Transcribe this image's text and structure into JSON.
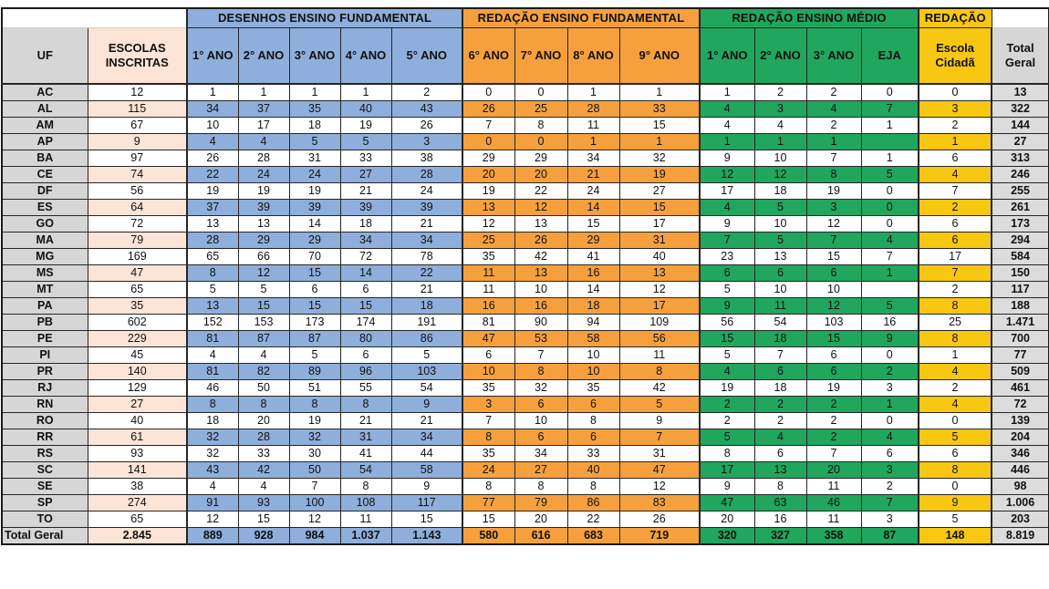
{
  "colors": {
    "blue": "#8eafdb",
    "orange": "#f6a03d",
    "green": "#21a65d",
    "yellow": "#f8c712",
    "grey": "#d6d6d6",
    "peach": "#fce4d6"
  },
  "table": {
    "groups": [
      {
        "label": "DESENHOS ENSINO FUNDAMENTAL",
        "seg": "blue",
        "span": 5
      },
      {
        "label": "REDAÇÃO ENSINO FUNDAMENTAL",
        "seg": "orange",
        "span": 4
      },
      {
        "label": "REDAÇÃO ENSINO MÉDIO",
        "seg": "green",
        "span": 4
      },
      {
        "label": "REDAÇÃO",
        "seg": "yellow",
        "span": 1
      }
    ],
    "columns": [
      {
        "label": "UF",
        "seg": "uf"
      },
      {
        "label": "ESCOLAS\nINSCRITAS",
        "seg": "esc"
      },
      {
        "label": "1° ANO",
        "seg": "blue"
      },
      {
        "label": "2° ANO",
        "seg": "blue"
      },
      {
        "label": "3° ANO",
        "seg": "blue"
      },
      {
        "label": "4° ANO",
        "seg": "blue"
      },
      {
        "label": "5° ANO",
        "seg": "blue"
      },
      {
        "label": "6° ANO",
        "seg": "orange"
      },
      {
        "label": "7° ANO",
        "seg": "orange"
      },
      {
        "label": "8° ANO",
        "seg": "orange"
      },
      {
        "label": "9° ANO",
        "seg": "orange"
      },
      {
        "label": "1° ANO",
        "seg": "green"
      },
      {
        "label": "2° ANO",
        "seg": "green"
      },
      {
        "label": "3° ANO",
        "seg": "green"
      },
      {
        "label": "EJA",
        "seg": "green"
      },
      {
        "label": "Escola\nCidadã",
        "seg": "yellow"
      },
      {
        "label": "Total\nGeral",
        "seg": "total"
      }
    ],
    "rows": [
      {
        "uf": "AC",
        "hl": false,
        "cells": [
          "12",
          "1",
          "1",
          "1",
          "1",
          "2",
          "0",
          "0",
          "1",
          "1",
          "1",
          "2",
          "2",
          "0",
          "0",
          "13"
        ]
      },
      {
        "uf": "AL",
        "hl": true,
        "cells": [
          "115",
          "34",
          "37",
          "35",
          "40",
          "43",
          "26",
          "25",
          "28",
          "33",
          "4",
          "3",
          "4",
          "7",
          "3",
          "322"
        ]
      },
      {
        "uf": "AM",
        "hl": false,
        "cells": [
          "67",
          "10",
          "17",
          "18",
          "19",
          "26",
          "7",
          "8",
          "11",
          "15",
          "4",
          "4",
          "2",
          "1",
          "2",
          "144"
        ]
      },
      {
        "uf": "AP",
        "hl": true,
        "cells": [
          "9",
          "4",
          "4",
          "5",
          "5",
          "3",
          "0",
          "0",
          "1",
          "1",
          "1",
          "1",
          "1",
          "",
          "1",
          "27"
        ]
      },
      {
        "uf": "BA",
        "hl": false,
        "cells": [
          "97",
          "26",
          "28",
          "31",
          "33",
          "38",
          "29",
          "29",
          "34",
          "32",
          "9",
          "10",
          "7",
          "1",
          "6",
          "313"
        ]
      },
      {
        "uf": "CE",
        "hl": true,
        "cells": [
          "74",
          "22",
          "24",
          "24",
          "27",
          "28",
          "20",
          "20",
          "21",
          "19",
          "12",
          "12",
          "8",
          "5",
          "4",
          "246"
        ]
      },
      {
        "uf": "DF",
        "hl": false,
        "cells": [
          "56",
          "19",
          "19",
          "19",
          "21",
          "24",
          "19",
          "22",
          "24",
          "27",
          "17",
          "18",
          "19",
          "0",
          "7",
          "255"
        ]
      },
      {
        "uf": "ES",
        "hl": true,
        "cells": [
          "64",
          "37",
          "39",
          "39",
          "39",
          "39",
          "13",
          "12",
          "14",
          "15",
          "4",
          "5",
          "3",
          "0",
          "2",
          "261"
        ]
      },
      {
        "uf": "GO",
        "hl": false,
        "cells": [
          "72",
          "13",
          "13",
          "14",
          "18",
          "21",
          "12",
          "13",
          "15",
          "17",
          "9",
          "10",
          "12",
          "0",
          "6",
          "173"
        ]
      },
      {
        "uf": "MA",
        "hl": true,
        "cells": [
          "79",
          "28",
          "29",
          "29",
          "34",
          "34",
          "25",
          "26",
          "29",
          "31",
          "7",
          "5",
          "7",
          "4",
          "6",
          "294"
        ]
      },
      {
        "uf": "MG",
        "hl": false,
        "cells": [
          "169",
          "65",
          "66",
          "70",
          "72",
          "78",
          "35",
          "42",
          "41",
          "40",
          "23",
          "13",
          "15",
          "7",
          "17",
          "584"
        ]
      },
      {
        "uf": "MS",
        "hl": true,
        "cells": [
          "47",
          "8",
          "12",
          "15",
          "14",
          "22",
          "11",
          "13",
          "16",
          "13",
          "6",
          "6",
          "6",
          "1",
          "7",
          "150"
        ]
      },
      {
        "uf": "MT",
        "hl": false,
        "cells": [
          "65",
          "5",
          "5",
          "6",
          "6",
          "21",
          "11",
          "10",
          "14",
          "12",
          "5",
          "10",
          "10",
          "",
          "2",
          "117"
        ]
      },
      {
        "uf": "PA",
        "hl": true,
        "cells": [
          "35",
          "13",
          "15",
          "15",
          "15",
          "18",
          "16",
          "16",
          "18",
          "17",
          "9",
          "11",
          "12",
          "5",
          "8",
          "188"
        ]
      },
      {
        "uf": "PB",
        "hl": false,
        "cells": [
          "602",
          "152",
          "153",
          "173",
          "174",
          "191",
          "81",
          "90",
          "94",
          "109",
          "56",
          "54",
          "103",
          "16",
          "25",
          "1.471"
        ]
      },
      {
        "uf": "PE",
        "hl": true,
        "cells": [
          "229",
          "81",
          "87",
          "87",
          "80",
          "86",
          "47",
          "53",
          "58",
          "56",
          "15",
          "18",
          "15",
          "9",
          "8",
          "700"
        ]
      },
      {
        "uf": "PI",
        "hl": false,
        "cells": [
          "45",
          "4",
          "4",
          "5",
          "6",
          "5",
          "6",
          "7",
          "10",
          "11",
          "5",
          "7",
          "6",
          "0",
          "1",
          "77"
        ]
      },
      {
        "uf": "PR",
        "hl": true,
        "cells": [
          "140",
          "81",
          "82",
          "89",
          "96",
          "103",
          "10",
          "8",
          "10",
          "8",
          "4",
          "6",
          "6",
          "2",
          "4",
          "509"
        ]
      },
      {
        "uf": "RJ",
        "hl": false,
        "cells": [
          "129",
          "46",
          "50",
          "51",
          "55",
          "54",
          "35",
          "32",
          "35",
          "42",
          "19",
          "18",
          "19",
          "3",
          "2",
          "461"
        ]
      },
      {
        "uf": "RN",
        "hl": true,
        "cells": [
          "27",
          "8",
          "8",
          "8",
          "8",
          "9",
          "3",
          "6",
          "6",
          "5",
          "2",
          "2",
          "2",
          "1",
          "4",
          "72"
        ]
      },
      {
        "uf": "RO",
        "hl": false,
        "cells": [
          "40",
          "18",
          "20",
          "19",
          "21",
          "21",
          "7",
          "10",
          "8",
          "9",
          "2",
          "2",
          "2",
          "0",
          "0",
          "139"
        ]
      },
      {
        "uf": "RR",
        "hl": true,
        "cells": [
          "61",
          "32",
          "28",
          "32",
          "31",
          "34",
          "8",
          "6",
          "6",
          "7",
          "5",
          "4",
          "2",
          "4",
          "5",
          "204"
        ]
      },
      {
        "uf": "RS",
        "hl": false,
        "cells": [
          "93",
          "32",
          "33",
          "30",
          "41",
          "44",
          "35",
          "34",
          "33",
          "31",
          "8",
          "6",
          "7",
          "6",
          "6",
          "346"
        ]
      },
      {
        "uf": "SC",
        "hl": true,
        "cells": [
          "141",
          "43",
          "42",
          "50",
          "54",
          "58",
          "24",
          "27",
          "40",
          "47",
          "17",
          "13",
          "20",
          "3",
          "8",
          "446"
        ]
      },
      {
        "uf": "SE",
        "hl": false,
        "cells": [
          "38",
          "4",
          "4",
          "7",
          "8",
          "9",
          "8",
          "8",
          "8",
          "12",
          "9",
          "8",
          "11",
          "2",
          "0",
          "98"
        ]
      },
      {
        "uf": "SP",
        "hl": true,
        "cells": [
          "274",
          "91",
          "93",
          "100",
          "108",
          "117",
          "77",
          "79",
          "86",
          "83",
          "47",
          "63",
          "46",
          "7",
          "9",
          "1.006"
        ]
      },
      {
        "uf": "TO",
        "hl": false,
        "cells": [
          "65",
          "12",
          "15",
          "12",
          "11",
          "15",
          "15",
          "20",
          "22",
          "26",
          "20",
          "16",
          "11",
          "3",
          "5",
          "203"
        ]
      },
      {
        "uf": "Total Geral",
        "hl": true,
        "is_total": true,
        "cells": [
          "2.845",
          "889",
          "928",
          "984",
          "1.037",
          "1.143",
          "580",
          "616",
          "683",
          "719",
          "320",
          "327",
          "358",
          "87",
          "148",
          "8.819"
        ]
      }
    ]
  }
}
